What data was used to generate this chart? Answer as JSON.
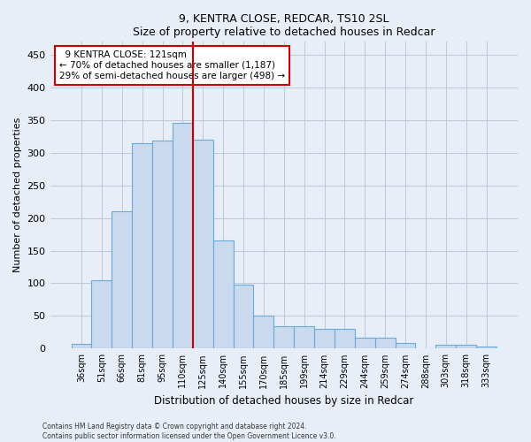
{
  "title1": "9, KENTRA CLOSE, REDCAR, TS10 2SL",
  "title2": "Size of property relative to detached houses in Redcar",
  "xlabel": "Distribution of detached houses by size in Redcar",
  "ylabel": "Number of detached properties",
  "categories": [
    "36sqm",
    "51sqm",
    "66sqm",
    "81sqm",
    "95sqm",
    "110sqm",
    "125sqm",
    "140sqm",
    "155sqm",
    "170sqm",
    "185sqm",
    "199sqm",
    "214sqm",
    "229sqm",
    "244sqm",
    "259sqm",
    "274sqm",
    "288sqm",
    "303sqm",
    "318sqm",
    "333sqm"
  ],
  "values": [
    7,
    105,
    210,
    315,
    318,
    345,
    320,
    165,
    98,
    50,
    35,
    35,
    30,
    30,
    17,
    17,
    9,
    0,
    6,
    6,
    3
  ],
  "bar_color": "#c9d9ee",
  "bar_edge_color": "#6aaad4",
  "vline_color": "#cc0000",
  "vline_x": 5.5,
  "annotation_line1": "9 KENTRA CLOSE: 121sqm",
  "annotation_line2": "← 70% of detached houses are smaller (1,187)",
  "annotation_line3": "29% of semi-detached houses are larger (498) →",
  "annotation_box_color": "#ffffff",
  "annotation_box_edge_color": "#cc0000",
  "footer1": "Contains HM Land Registry data © Crown copyright and database right 2024.",
  "footer2": "Contains public sector information licensed under the Open Government Licence v3.0.",
  "ylim": [
    0,
    470
  ],
  "yticks": [
    0,
    50,
    100,
    150,
    200,
    250,
    300,
    350,
    400,
    450
  ],
  "bg_color": "#e8eef8",
  "plot_bg_color": "#e8eef8",
  "grid_color": "#c0c8d8"
}
